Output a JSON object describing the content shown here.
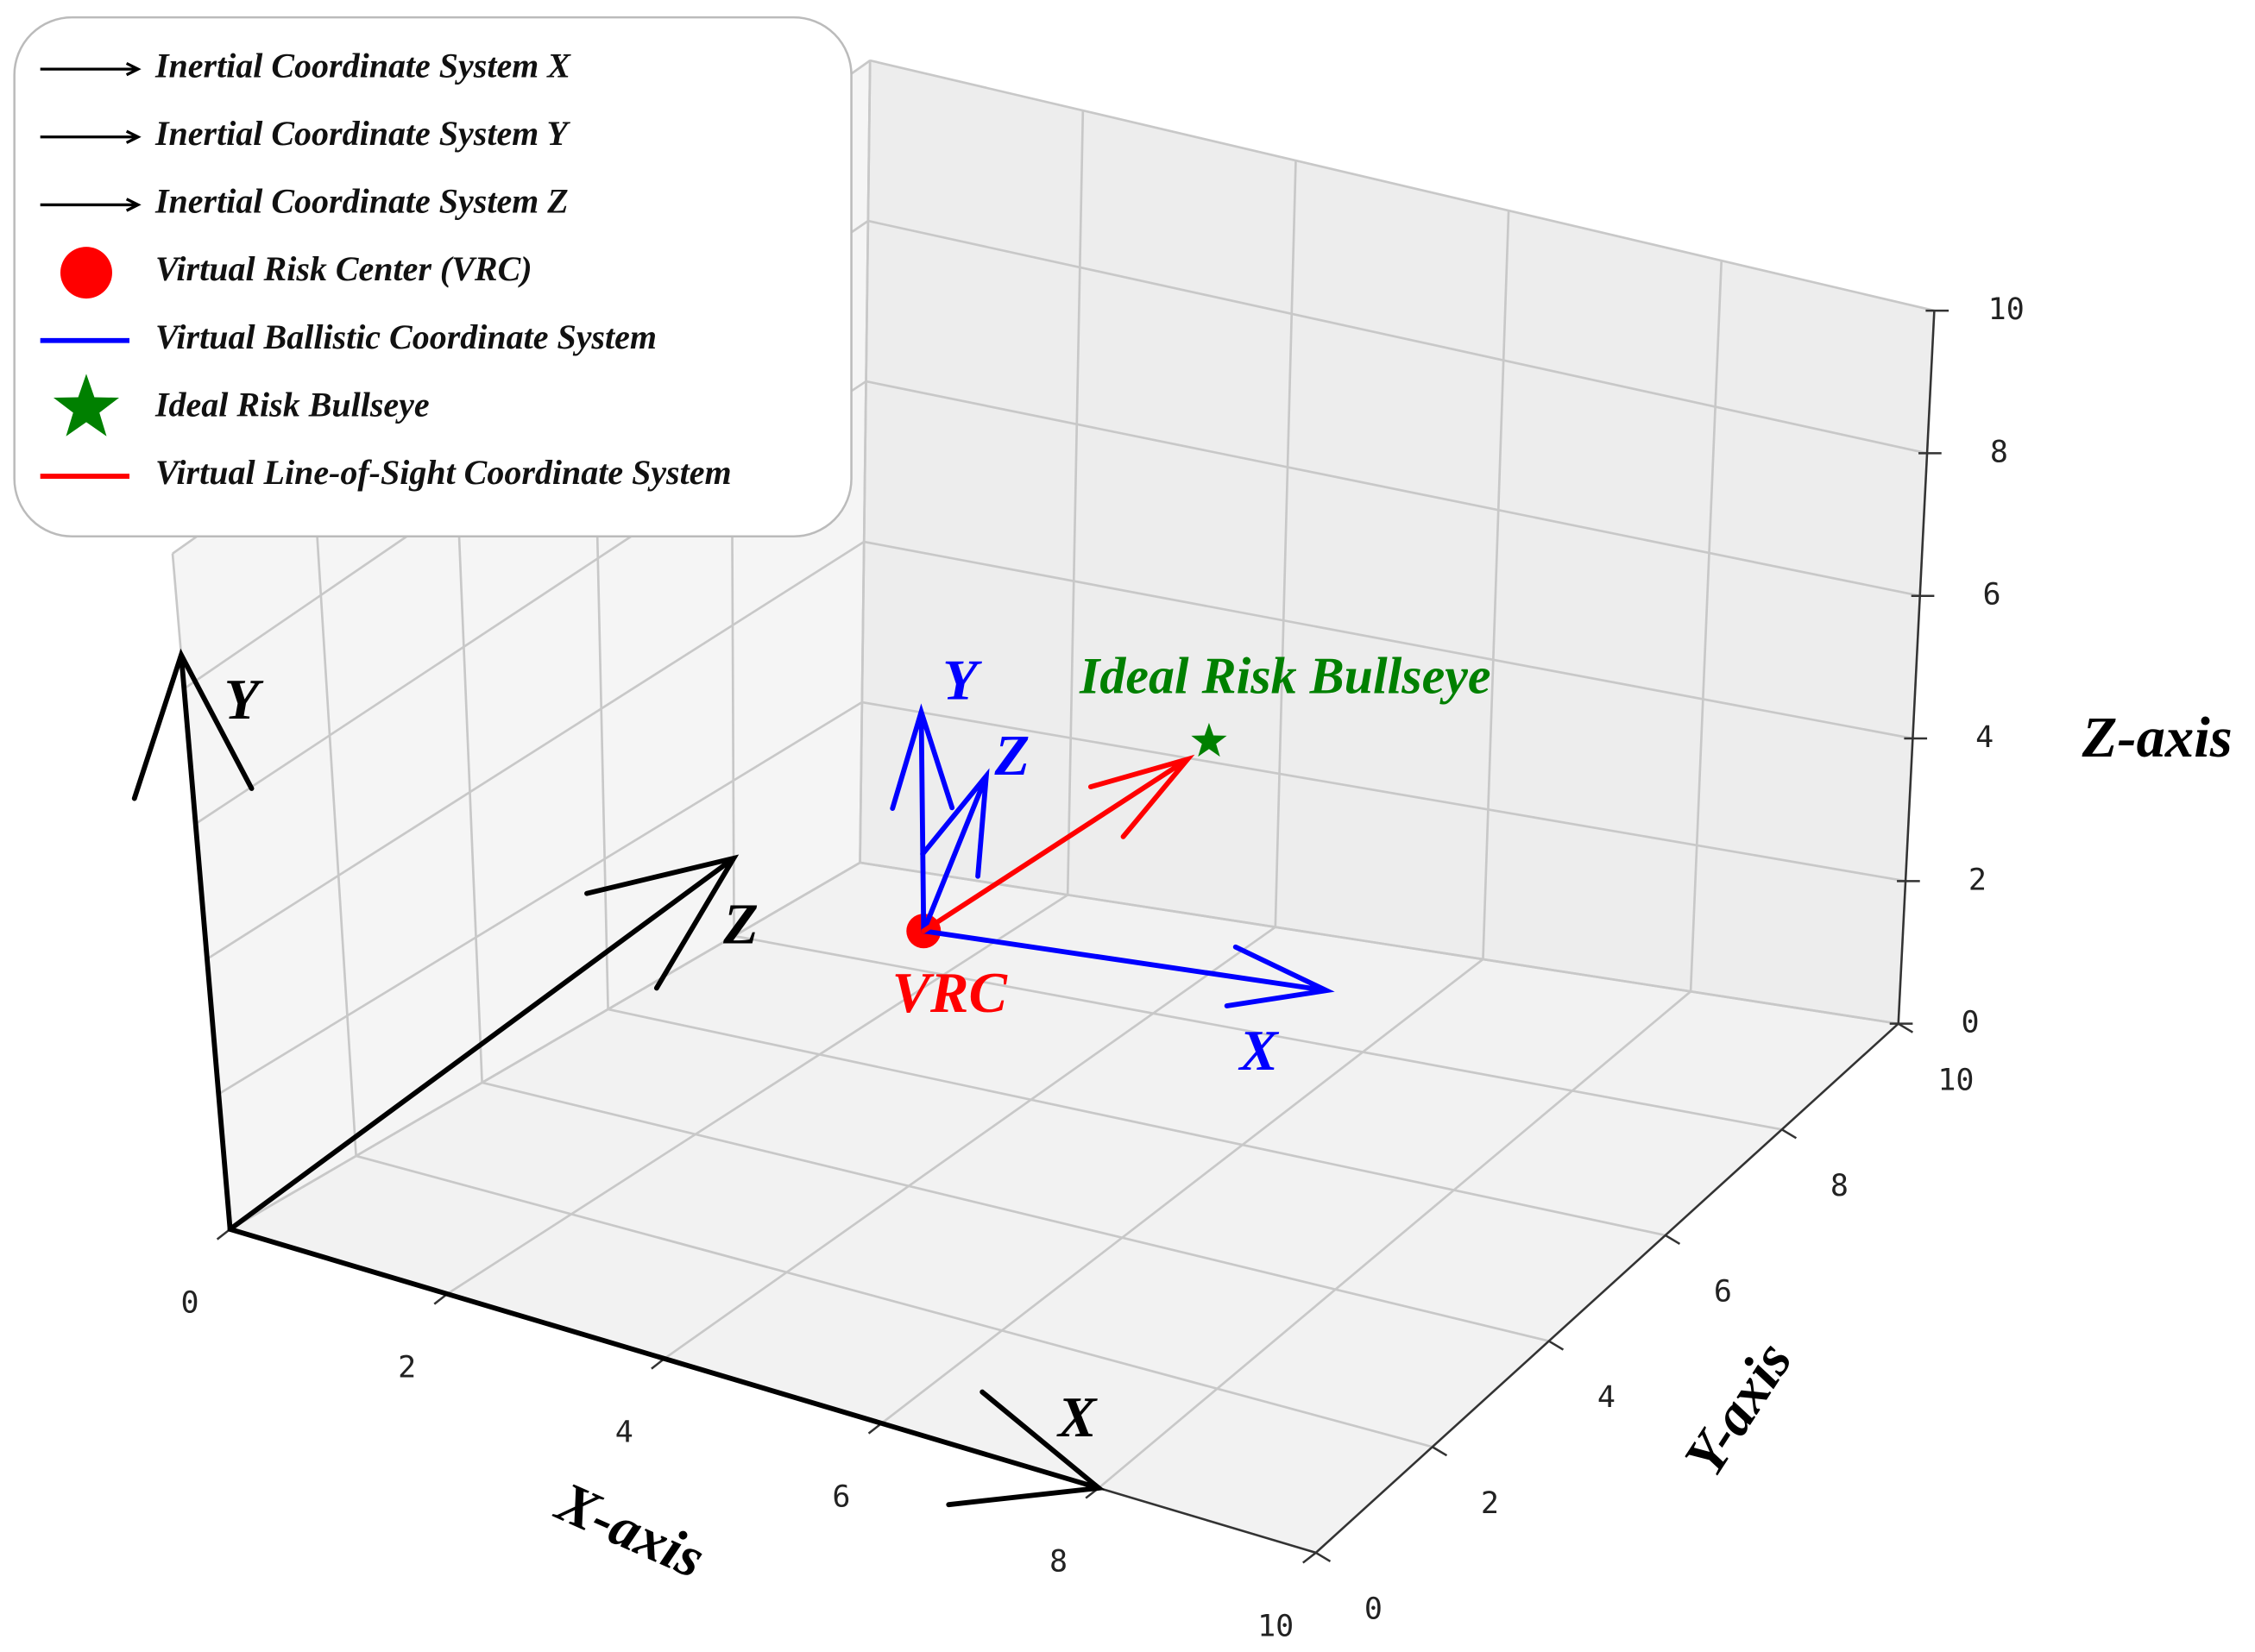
{
  "chart_data": {
    "type": "quiver3d",
    "xlabel": "X-axis",
    "ylabel": "Y-axis",
    "zlabel": "Z-axis",
    "xlim": [
      0,
      10
    ],
    "ylim": [
      0,
      10
    ],
    "zlim": [
      0,
      10
    ],
    "xticks": [
      0,
      2,
      4,
      6,
      8,
      10
    ],
    "yticks": [
      0,
      2,
      4,
      6,
      8,
      10
    ],
    "zticks": [
      0,
      2,
      4,
      6,
      8,
      10
    ],
    "grid": true,
    "legend": "upper left",
    "series": [
      {
        "name": "Inertial Coordinate System X",
        "color": "#000000",
        "marker": "arrow",
        "arrows": [
          {
            "start": [
              0,
              0,
              0
            ],
            "end": [
              8,
              0,
              0
            ],
            "label": "X"
          }
        ]
      },
      {
        "name": "Inertial Coordinate System Y",
        "color": "#000000",
        "marker": "arrow",
        "arrows": [
          {
            "start": [
              0,
              0,
              0
            ],
            "end": [
              0,
              0,
              8.5
            ],
            "label": "Y"
          }
        ]
      },
      {
        "name": "Inertial Coordinate System Z",
        "color": "#000000",
        "marker": "arrow",
        "arrows": [
          {
            "start": [
              0,
              0,
              0
            ],
            "end": [
              0,
              8,
              1
            ],
            "label": "Z"
          }
        ]
      },
      {
        "name": "Virtual Risk Center (VRC)",
        "color": "#ff0000",
        "marker": "circle",
        "points": [
          {
            "position": [
              3,
              6,
              2
            ],
            "label": "VRC"
          }
        ]
      },
      {
        "name": "Virtual Ballistic Coordinate System",
        "color": "#0000ff",
        "marker": "line",
        "arrows": [
          {
            "start": [
              3,
              6,
              2
            ],
            "end": [
              6.5,
              6.5,
              2
            ],
            "label": "X"
          },
          {
            "start": [
              3,
              6,
              2
            ],
            "end": [
              3,
              6,
              5
            ],
            "label": "Y"
          },
          {
            "start": [
              3,
              6,
              2
            ],
            "end": [
              3,
              7,
              3.5
            ],
            "label": "Z"
          }
        ]
      },
      {
        "name": "Ideal Risk Bullseye",
        "color": "#008000",
        "marker": "star",
        "points": [
          {
            "position": [
              4.5,
              8,
              3.8
            ],
            "label": "Ideal Risk Bullseye"
          }
        ]
      },
      {
        "name": "Virtual Line-of-Sight Coordinate System",
        "color": "#ff0000",
        "marker": "line",
        "arrows": [
          {
            "start": [
              3,
              6,
              2
            ],
            "end": [
              4.3,
              8,
              3.5
            ]
          }
        ]
      }
    ]
  }
}
